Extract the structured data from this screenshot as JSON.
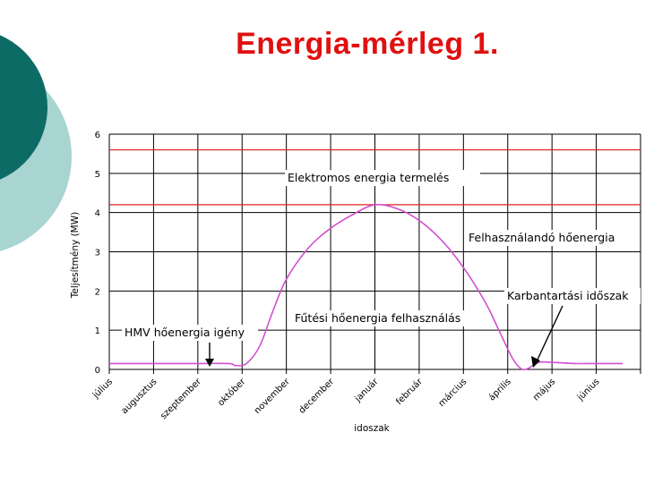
{
  "slide": {
    "title": "Energia-mérleg 1."
  },
  "colors": {
    "title": "#e01010",
    "deco_dark": "#0d6b66",
    "deco_light": "#a8d4d2",
    "red_line": "#dd2020",
    "curve": "#d050d0",
    "grid": "#000000"
  },
  "chart_data": {
    "type": "line",
    "title": "",
    "xlabel": "idoszak",
    "ylabel": "Teljesítmény (MW)",
    "ylim": [
      0,
      6
    ],
    "yticks": [
      "0",
      "1",
      "2",
      "3",
      "4",
      "5",
      "6"
    ],
    "categories": [
      "július",
      "augusztus",
      "szeptember",
      "október",
      "november",
      "december",
      "január",
      "február",
      "március",
      "április",
      "május",
      "június"
    ],
    "grid": true,
    "series": [
      {
        "name": "",
        "color": "#dd2020",
        "kind": "horizontal",
        "y": 5.6
      },
      {
        "name": "",
        "color": "#dd2020",
        "kind": "horizontal",
        "y": 4.2
      },
      {
        "name": "",
        "color": "#d050d0",
        "kind": "curve",
        "points": [
          [
            0,
            0.15
          ],
          [
            1,
            0.15
          ],
          [
            2,
            0.15
          ],
          [
            2.7,
            0.15
          ],
          [
            2.85,
            0.1
          ],
          [
            3.1,
            0.15
          ],
          [
            3.4,
            0.6
          ],
          [
            3.7,
            1.5
          ],
          [
            4,
            2.3
          ],
          [
            4.5,
            3.1
          ],
          [
            5,
            3.6
          ],
          [
            5.5,
            3.95
          ],
          [
            6,
            4.2
          ],
          [
            6.5,
            4.1
          ],
          [
            7,
            3.8
          ],
          [
            7.5,
            3.3
          ],
          [
            8,
            2.6
          ],
          [
            8.5,
            1.7
          ],
          [
            8.8,
            1.0
          ],
          [
            9.1,
            0.3
          ],
          [
            9.3,
            0.02
          ],
          [
            9.45,
            0.02
          ],
          [
            9.7,
            0.18
          ],
          [
            10,
            0.18
          ],
          [
            10.5,
            0.15
          ],
          [
            11,
            0.15
          ],
          [
            11.6,
            0.15
          ]
        ]
      }
    ],
    "annotations": [
      {
        "id": "elektromos",
        "text": "Elektromos energia termelés"
      },
      {
        "id": "felhasznalando",
        "text": "Felhasználandó hőenergia"
      },
      {
        "id": "karbantartasi",
        "text": "Karbantartási időszak"
      },
      {
        "id": "futesi",
        "text": "Fűtési hőenergia felhasználás"
      },
      {
        "id": "hmv",
        "text": "HMV hőenergia igény"
      }
    ]
  }
}
